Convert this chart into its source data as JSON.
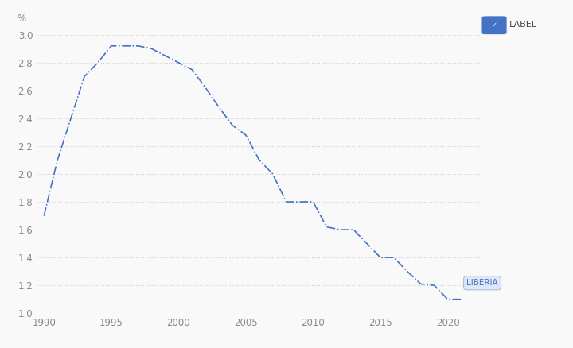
{
  "years": [
    1990,
    1991,
    1992,
    1993,
    1994,
    1995,
    1996,
    1997,
    1998,
    1999,
    2000,
    2001,
    2002,
    2003,
    2004,
    2005,
    2006,
    2007,
    2008,
    2009,
    2010,
    2011,
    2012,
    2013,
    2014,
    2015,
    2016,
    2017,
    2018,
    2019,
    2020,
    2021
  ],
  "values": [
    1.7,
    2.1,
    2.4,
    2.7,
    2.8,
    2.92,
    2.92,
    2.92,
    2.9,
    2.85,
    2.8,
    2.75,
    2.62,
    2.48,
    2.35,
    2.28,
    2.1,
    2.0,
    1.8,
    1.8,
    1.8,
    1.62,
    1.6,
    1.6,
    1.5,
    1.4,
    1.4,
    1.3,
    1.21,
    1.2,
    1.1,
    1.1
  ],
  "line_color": "#4472c4",
  "line_style": "-.",
  "line_width": 1.2,
  "ylabel": "%",
  "ylim": [
    1.0,
    3.0
  ],
  "yticks": [
    1.0,
    1.2,
    1.4,
    1.6,
    1.8,
    2.0,
    2.2,
    2.4,
    2.6,
    2.8,
    3.0
  ],
  "xlim": [
    1989.5,
    2022.5
  ],
  "xticks": [
    1990,
    1995,
    2000,
    2005,
    2010,
    2015,
    2020
  ],
  "grid_color": "#d0d0d0",
  "grid_style": ":",
  "background_color": "#f9f9f9",
  "label_text": "LIBERIA",
  "legend_label": "LABEL",
  "legend_checkbox_color": "#4472c4",
  "label_box_facecolor": "#dce6f7",
  "label_box_edgecolor": "#a8b8d0",
  "tick_color": "#888888",
  "tick_fontsize": 8.5
}
